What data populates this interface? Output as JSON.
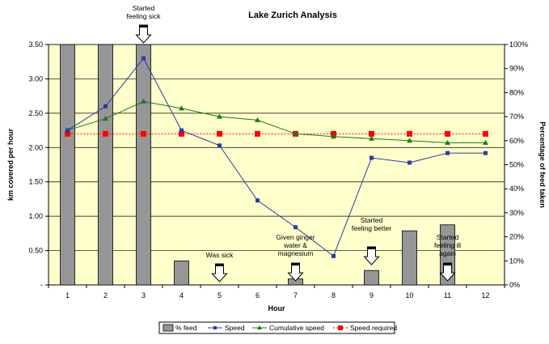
{
  "chart_data": {
    "type": "bar",
    "title": "Lake Zurich Analysis",
    "xlabel": "Hour",
    "ylabel": "km covered per hour",
    "y2label": "Percentage of feed taken",
    "categories": [
      "1",
      "2",
      "3",
      "4",
      "5",
      "6",
      "7",
      "8",
      "9",
      "10",
      "11",
      "12"
    ],
    "ylim": [
      0,
      3.5
    ],
    "y2lim": [
      0,
      100
    ],
    "yticks": [
      "-",
      "0.50",
      "1.00",
      "1.50",
      "2.00",
      "2.50",
      "3.00",
      "3.50"
    ],
    "y2ticks": [
      "0%",
      "10%",
      "20%",
      "30%",
      "40%",
      "50%",
      "60%",
      "70%",
      "80%",
      "90%",
      "100%"
    ],
    "grid": true,
    "series": [
      {
        "name": "% feed",
        "type": "bar",
        "axis": "right",
        "values": [
          100,
          100,
          100,
          10,
          0,
          0,
          2.5,
          0,
          6,
          22.5,
          25,
          0
        ],
        "color": "#969696"
      },
      {
        "name": "Speed",
        "type": "line",
        "axis": "left",
        "values": [
          2.25,
          2.6,
          3.3,
          2.25,
          2.03,
          1.23,
          0.84,
          0.42,
          1.85,
          1.78,
          1.92,
          1.92
        ],
        "color": "#2b3ba0"
      },
      {
        "name": "Cumulative speed",
        "type": "line",
        "axis": "left",
        "values": [
          2.25,
          2.42,
          2.67,
          2.57,
          2.45,
          2.4,
          2.2,
          2.16,
          2.13,
          2.1,
          2.07,
          2.07
        ],
        "color": "#1a7a1a"
      },
      {
        "name": "Speed required",
        "type": "line",
        "axis": "left",
        "values": [
          2.2,
          2.2,
          2.2,
          2.2,
          2.2,
          2.2,
          2.2,
          2.2,
          2.2,
          2.2,
          2.2,
          2.2
        ],
        "color": "#ff0000"
      }
    ],
    "annotations": [
      {
        "hour": 3,
        "lines": [
          "Started",
          "feeling sick"
        ],
        "arrow": "down-above"
      },
      {
        "hour": 5,
        "lines": [
          "Was sick"
        ],
        "arrow": "down"
      },
      {
        "hour": 7,
        "lines": [
          "Given ginger",
          "water &",
          "magnesium"
        ],
        "arrow": "down"
      },
      {
        "hour": 9,
        "lines": [
          "Started",
          "feeling better"
        ],
        "arrow": "down"
      },
      {
        "hour": 11,
        "lines": [
          "Started",
          "feeling ill",
          "again"
        ],
        "arrow": "down"
      }
    ],
    "colors": {
      "plot_background": "#ffffcc",
      "gridline": "#000000",
      "bar": "#969696"
    },
    "legend_position": "bottom"
  }
}
